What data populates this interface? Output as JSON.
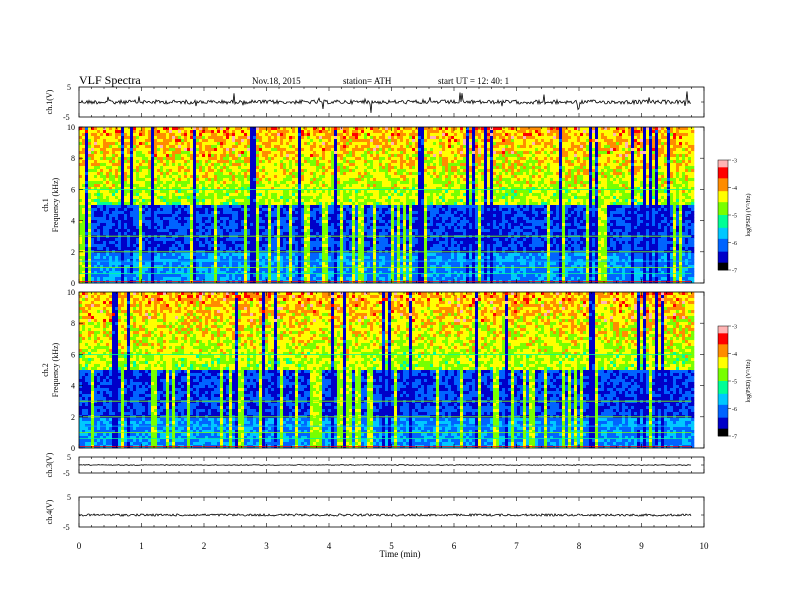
{
  "header": {
    "title": "VLF  Spectra",
    "date": "Nov.18, 2015",
    "station": "station= ATH",
    "start": "start  UT  =    12: 40: 1"
  },
  "chart_data": [
    {
      "type": "line",
      "panel": "ch1-waveform",
      "ylabel": "ch.1(V)",
      "ylim": [
        -5,
        5
      ],
      "yticks": [
        "5",
        "-5"
      ],
      "xlim": [
        0,
        10
      ],
      "x_end": 9.8,
      "baseline": 0,
      "note": "noisy waveform near 0 V with occasional spikes"
    },
    {
      "type": "heatmap",
      "panel": "ch1-spectrogram",
      "ylabel_channel": "ch.1",
      "ylabel": "Frequency  (kHz)",
      "ylim": [
        0,
        10
      ],
      "yticks": [
        "0",
        "2",
        "4",
        "6",
        "8",
        "10"
      ],
      "xlim": [
        0,
        10
      ],
      "x_end": 9.8,
      "colorbar": {
        "label": "log(PSD) (V²/Hz)",
        "range": [
          -7,
          -3
        ],
        "ticks": [
          "-3",
          "-4",
          "-5",
          "-6",
          "-7"
        ]
      }
    },
    {
      "type": "heatmap",
      "panel": "ch2-spectrogram",
      "ylabel_channel": "ch.2",
      "ylabel": "Frequency  (kHz)",
      "ylim": [
        0,
        10
      ],
      "yticks": [
        "0",
        "2",
        "4",
        "6",
        "8",
        "10"
      ],
      "xlim": [
        0,
        10
      ],
      "x_end": 9.8,
      "colorbar": {
        "label": "log(PSD) (V²/Hz)",
        "range": [
          -7,
          -3
        ],
        "ticks": [
          "-3",
          "-4",
          "-5",
          "-6",
          "-7"
        ]
      }
    },
    {
      "type": "line",
      "panel": "ch3-waveform",
      "ylabel": "ch.3(V)",
      "ylim": [
        -5,
        5
      ],
      "yticks": [
        "5",
        "-5"
      ],
      "xlim": [
        0,
        10
      ],
      "x_end": 9.8,
      "baseline": 0
    },
    {
      "type": "line",
      "panel": "ch4-waveform",
      "ylabel": "ch.4(V)",
      "ylim": [
        -5,
        5
      ],
      "yticks": [
        "5",
        "-5"
      ],
      "xlim": [
        0,
        10
      ],
      "x_end": 9.8,
      "baseline": -1
    }
  ],
  "xaxis": {
    "label": "Time  (min)",
    "ticks": [
      "0",
      "1",
      "2",
      "3",
      "4",
      "5",
      "6",
      "7",
      "8",
      "9",
      "10"
    ]
  },
  "colors": {
    "colormap": [
      "#000000",
      "#0000c8",
      "#0064ff",
      "#00c8ff",
      "#00ff96",
      "#78ff00",
      "#ffff00",
      "#ff8c00",
      "#ff0000",
      "#ffb4b4",
      "#ffffff"
    ]
  }
}
